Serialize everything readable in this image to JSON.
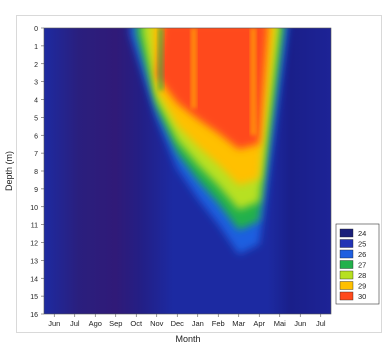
{
  "chart_data": {
    "type": "heatmap",
    "title": "",
    "xlabel": "Month",
    "ylabel": "Depth (m)",
    "x_ticks": [
      "Jun",
      "Jul",
      "Ago",
      "Sep",
      "Oct",
      "Nov",
      "Dec",
      "Jan",
      "Feb",
      "Mar",
      "Apr",
      "Mai",
      "Jun",
      "Jul"
    ],
    "y_ticks": [
      "0",
      "1",
      "2",
      "3",
      "4",
      "5",
      "6",
      "7",
      "8",
      "9",
      "10",
      "11",
      "12",
      "13",
      "14",
      "15",
      "16"
    ],
    "ylim": [
      0,
      16
    ],
    "y_inverted": true,
    "grid": false,
    "legend_position": "bottom-right",
    "colorbar": [
      {
        "value": "24",
        "color": "#1a1f7a"
      },
      {
        "value": "25",
        "color": "#2233b5"
      },
      {
        "value": "26",
        "color": "#1f5fe0"
      },
      {
        "value": "27",
        "color": "#22b14c"
      },
      {
        "value": "28",
        "color": "#b7e021"
      },
      {
        "value": "29",
        "color": "#ffc000"
      },
      {
        "value": "30",
        "color": "#ff4a1c"
      }
    ],
    "warm_layer_depth_m": [
      {
        "month": "Oct",
        "depth": 0.3
      },
      {
        "month": "Nov",
        "depth": 4.5
      },
      {
        "month": "Dec",
        "depth": 7.0
      },
      {
        "month": "Jan",
        "depth": 8.5
      },
      {
        "month": "Feb",
        "depth": 9.8
      },
      {
        "month": "Mar",
        "depth": 11.3
      },
      {
        "month": "Apr",
        "depth": 10.8
      },
      {
        "month": "Mai",
        "depth": 0
      }
    ],
    "max_temperature_c": 30
  }
}
